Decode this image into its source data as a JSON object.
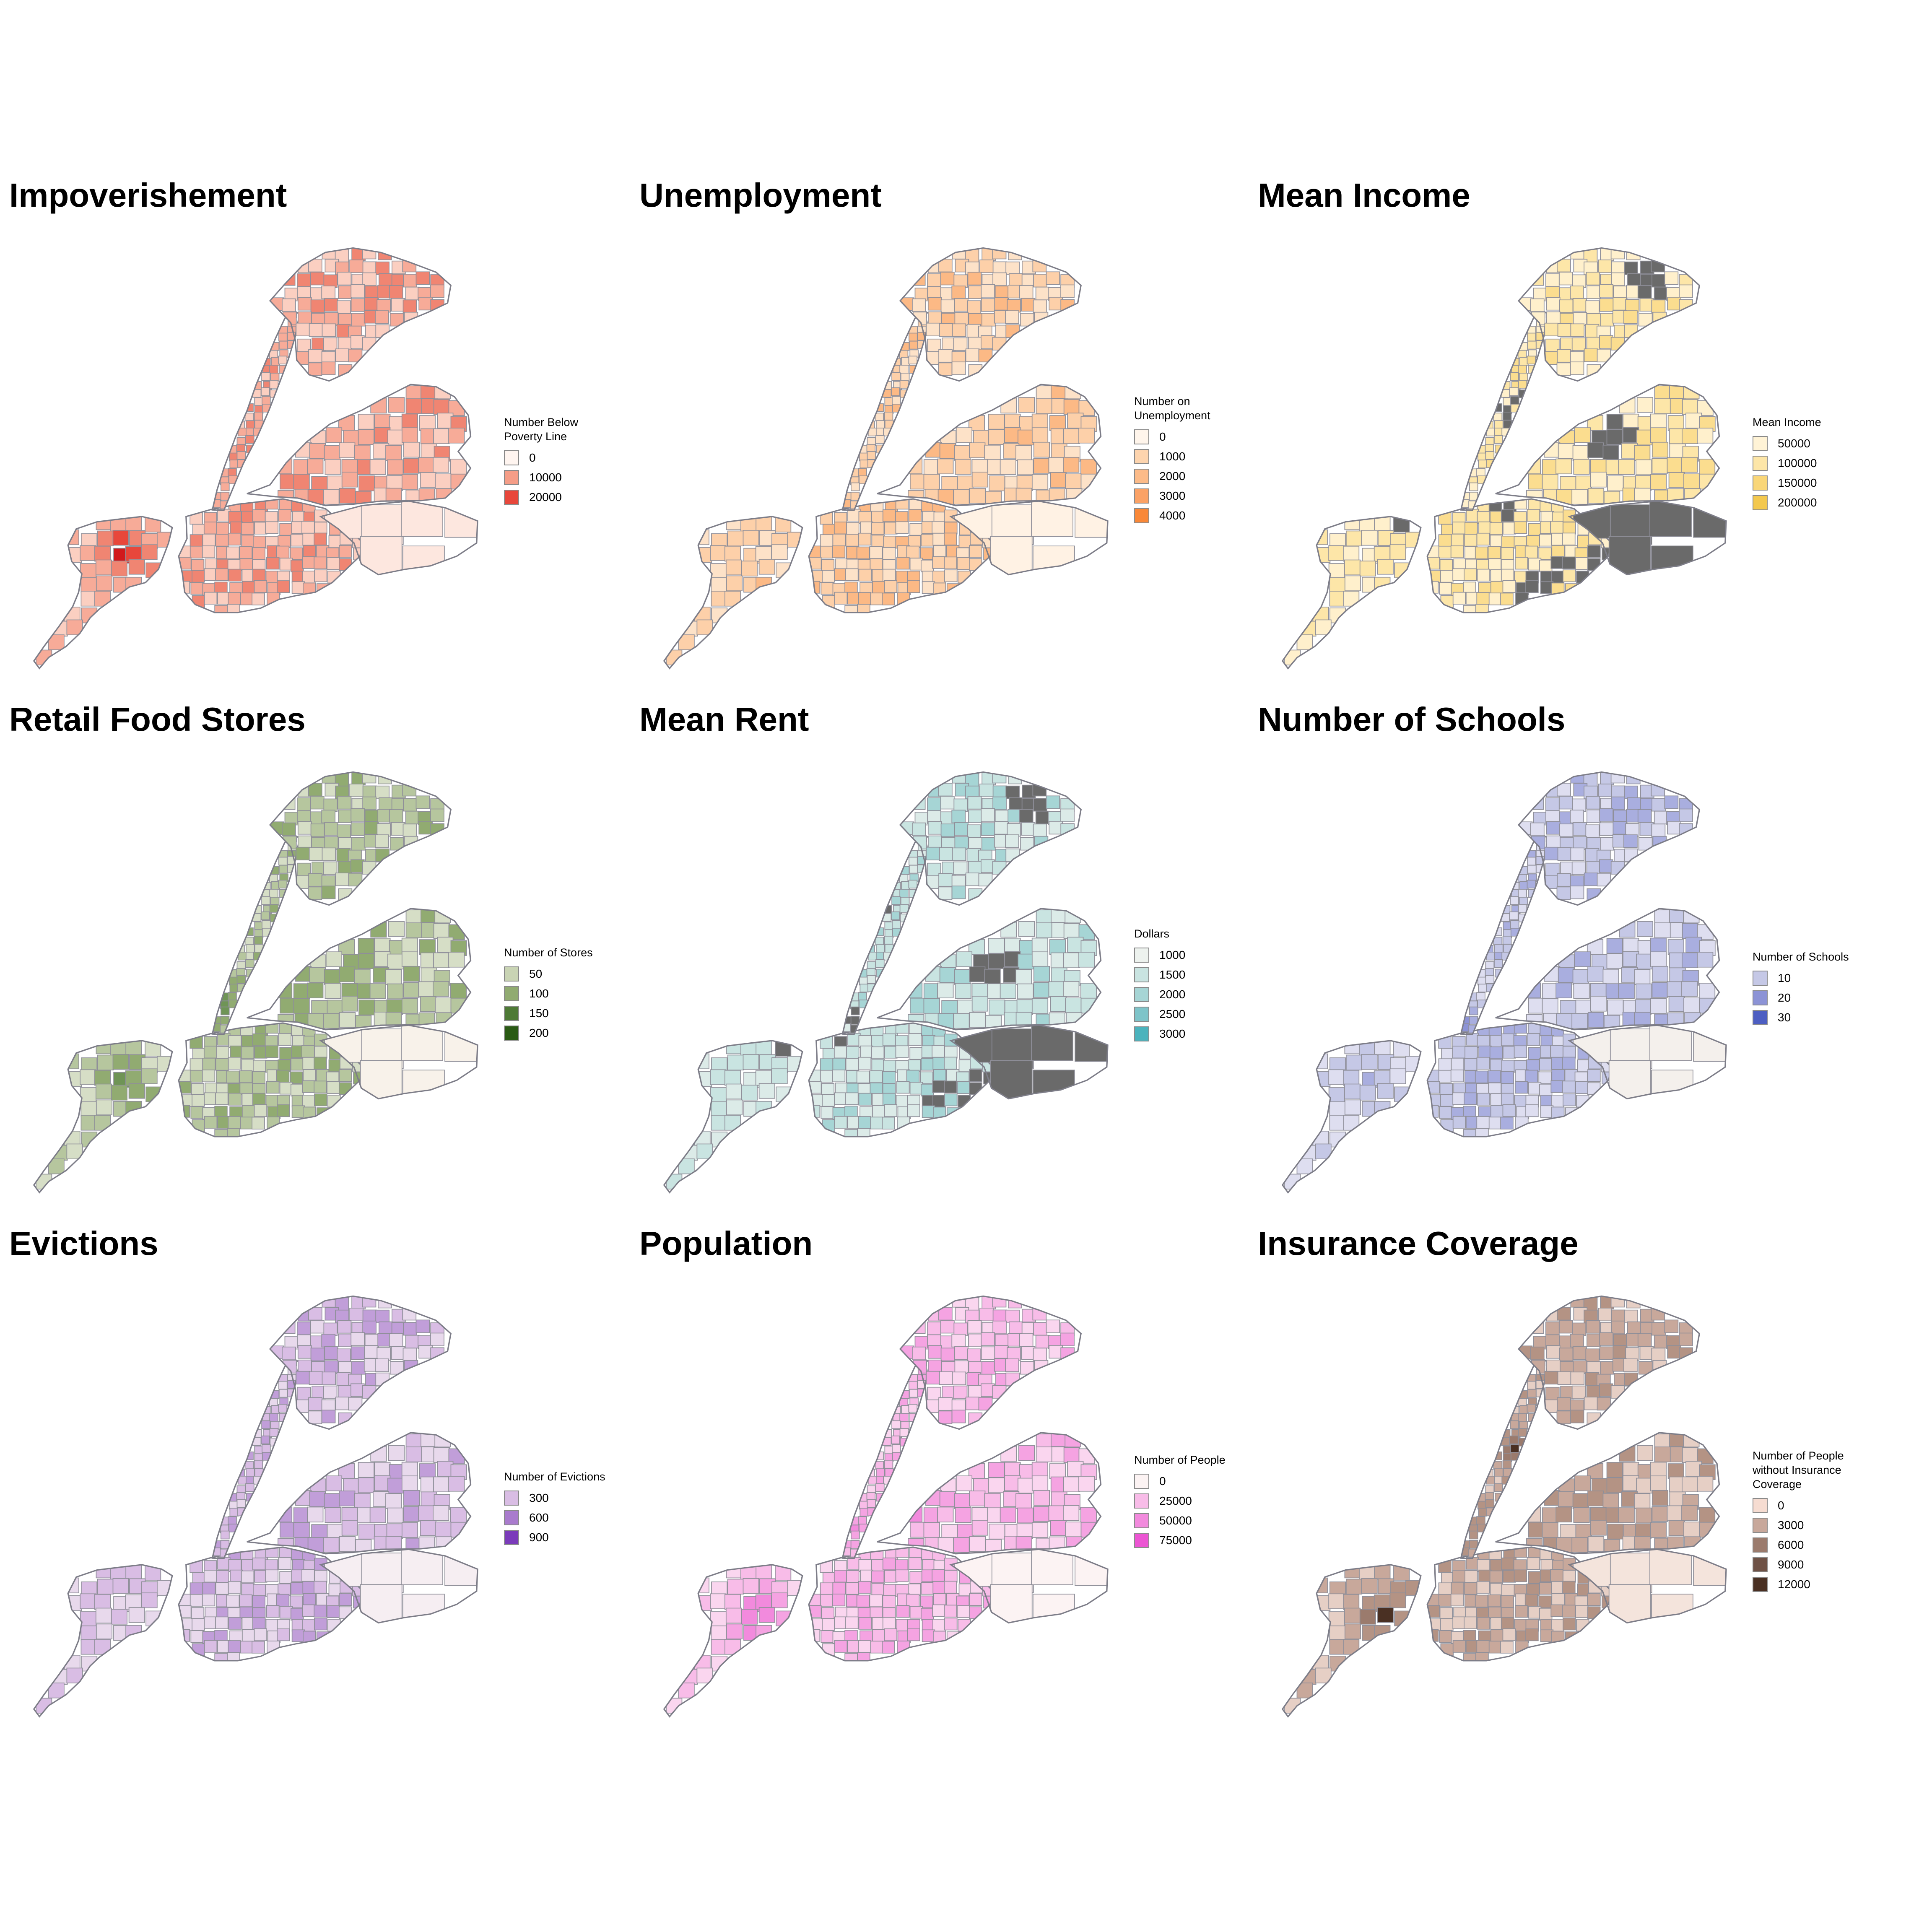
{
  "figure": {
    "panels": [
      {
        "id": "impoverishement",
        "title": "Impoverishement",
        "legend": {
          "title": "Number Below\nPoverty Line",
          "entries": [
            {
              "label": "0",
              "color": "#fff5f0"
            },
            {
              "label": "10000",
              "color": "#f59d87"
            },
            {
              "label": "20000",
              "color": "#e8473b"
            }
          ]
        },
        "palette": [
          "#fde7df",
          "#fbcfc1",
          "#f7ab98",
          "#f08572",
          "#e8473b",
          "#d11a1d"
        ],
        "hot": [
          [
            0.3,
            0.22,
            5
          ],
          [
            0.28,
            0.16,
            4
          ],
          [
            0.35,
            0.25,
            4
          ],
          [
            0.42,
            0.3,
            4
          ],
          [
            0.2,
            0.72,
            5
          ],
          [
            0.26,
            0.74,
            4
          ],
          [
            0.4,
            0.5,
            4
          ],
          [
            0.48,
            0.58,
            4
          ],
          [
            0.32,
            0.6,
            3
          ],
          [
            0.24,
            0.3,
            3
          ]
        ],
        "missing": []
      },
      {
        "id": "unemployment",
        "title": "Unemployment",
        "legend": {
          "title": "Number on\nUnemployment",
          "entries": [
            {
              "label": "0",
              "color": "#fff5eb"
            },
            {
              "label": "1000",
              "color": "#fdd4ae"
            },
            {
              "label": "2000",
              "color": "#fcbb89"
            },
            {
              "label": "3000",
              "color": "#fba266"
            },
            {
              "label": "4000",
              "color": "#f98838"
            }
          ]
        },
        "palette": [
          "#fff2e4",
          "#fde2c8",
          "#fdd0a9",
          "#fcb985",
          "#fba266",
          "#f98838"
        ],
        "hot": [
          [
            0.26,
            0.14,
            5
          ],
          [
            0.3,
            0.22,
            4
          ],
          [
            0.22,
            0.32,
            3
          ],
          [
            0.38,
            0.52,
            4
          ],
          [
            0.5,
            0.55,
            4
          ],
          [
            0.62,
            0.58,
            3
          ],
          [
            0.3,
            0.66,
            3
          ],
          [
            0.22,
            0.8,
            3
          ]
        ],
        "missing": []
      },
      {
        "id": "mean-income",
        "title": "Mean Income",
        "legend": {
          "title": "Mean Income",
          "entries": [
            {
              "label": "50000",
              "color": "#fff3d6"
            },
            {
              "label": "100000",
              "color": "#fde6a8"
            },
            {
              "label": "150000",
              "color": "#f9d678"
            },
            {
              "label": "200000",
              "color": "#f3c84e"
            }
          ]
        },
        "palette": [
          "#fff6df",
          "#fff0cc",
          "#fde6a8",
          "#fbdd8f",
          "#f9d678",
          "#f3c84e"
        ],
        "hot": [
          [
            0.08,
            0.4,
            5
          ],
          [
            0.12,
            0.48,
            4
          ],
          [
            0.1,
            0.34,
            4
          ],
          [
            0.14,
            0.56,
            3
          ],
          [
            0.06,
            0.84,
            3
          ]
        ],
        "missing": [
          [
            0.62,
            0.78
          ],
          [
            0.7,
            0.74
          ],
          [
            0.56,
            0.82
          ],
          [
            0.44,
            0.32
          ],
          [
            0.52,
            0.4
          ],
          [
            0.8,
            0.1
          ],
          [
            0.72,
            0.46
          ],
          [
            0.3,
            0.66
          ],
          [
            0.48,
            0.6
          ]
        ]
      },
      {
        "id": "retail-food-stores",
        "title": "Retail Food Stores",
        "legend": {
          "title": "Number of Stores",
          "entries": [
            {
              "label": "50",
              "color": "#c9d4b4"
            },
            {
              "label": "100",
              "color": "#91ab71"
            },
            {
              "label": "150",
              "color": "#4e7a36"
            },
            {
              "label": "200",
              "color": "#2a5a14"
            }
          ]
        },
        "palette": [
          "#f8f2ea",
          "#d6dec6",
          "#b6c69e",
          "#91ab71",
          "#6f9456",
          "#2a5a14"
        ],
        "hot": [
          [
            0.34,
            0.52,
            5
          ],
          [
            0.4,
            0.56,
            5
          ],
          [
            0.2,
            0.72,
            4
          ],
          [
            0.26,
            0.78,
            4
          ],
          [
            0.58,
            0.54,
            4
          ],
          [
            0.28,
            0.24,
            3
          ],
          [
            0.24,
            0.14,
            3
          ]
        ],
        "missing": []
      },
      {
        "id": "mean-rent",
        "title": "Mean Rent",
        "legend": {
          "title": "Dollars",
          "entries": [
            {
              "label": "1000",
              "color": "#edf2ee"
            },
            {
              "label": "1500",
              "color": "#c9e4e1"
            },
            {
              "label": "2000",
              "color": "#a6d5d5"
            },
            {
              "label": "2500",
              "color": "#7ec4c9"
            },
            {
              "label": "3000",
              "color": "#4bb3bd"
            }
          ]
        },
        "palette": [
          "#edf2ee",
          "#dcebe8",
          "#c9e4e1",
          "#a6d5d5",
          "#7ec4c9",
          "#4bb3bd"
        ],
        "hot": [
          [
            0.1,
            0.44,
            5
          ],
          [
            0.12,
            0.52,
            4
          ],
          [
            0.08,
            0.38,
            4
          ],
          [
            0.14,
            0.6,
            3
          ]
        ],
        "missing": [
          [
            0.62,
            0.78
          ],
          [
            0.7,
            0.74
          ],
          [
            0.8,
            0.1
          ],
          [
            0.46,
            0.32
          ],
          [
            0.54,
            0.42
          ],
          [
            0.72,
            0.48
          ],
          [
            0.28,
            0.64
          ],
          [
            0.4,
            0.6
          ],
          [
            0.3,
            0.1
          ]
        ]
      },
      {
        "id": "number-of-schools",
        "title": "Number of Schools",
        "legend": {
          "title": "Number of Schools",
          "entries": [
            {
              "label": "10",
              "color": "#c5c8e6"
            },
            {
              "label": "20",
              "color": "#8c93d6"
            },
            {
              "label": "30",
              "color": "#4d5ec2"
            }
          ]
        },
        "palette": [
          "#f4f0ec",
          "#dedef0",
          "#c5c8e6",
          "#a9aedf",
          "#8c93d6",
          "#4d5ec2"
        ],
        "hot": [
          [
            0.36,
            0.56,
            5
          ],
          [
            0.4,
            0.6,
            4
          ],
          [
            0.3,
            0.2,
            4
          ],
          [
            0.24,
            0.3,
            4
          ],
          [
            0.46,
            0.66,
            3
          ],
          [
            0.2,
            0.72,
            3
          ]
        ],
        "missing": []
      },
      {
        "id": "evictions",
        "title": "Evictions",
        "legend": {
          "title": "Number of Evictions",
          "entries": [
            {
              "label": "300",
              "color": "#d9bde4"
            },
            {
              "label": "600",
              "color": "#a97bcd"
            },
            {
              "label": "900",
              "color": "#7b3bba"
            }
          ]
        },
        "palette": [
          "#f6eef2",
          "#e8d9ec",
          "#d9bde4",
          "#c19ed9",
          "#a97bcd",
          "#6a1fb0"
        ],
        "hot": [
          [
            0.3,
            0.16,
            5
          ],
          [
            0.34,
            0.22,
            5
          ],
          [
            0.26,
            0.24,
            4
          ],
          [
            0.38,
            0.56,
            4
          ],
          [
            0.3,
            0.6,
            4
          ],
          [
            0.44,
            0.62,
            3
          ],
          [
            0.6,
            0.6,
            3
          ],
          [
            0.6,
            0.82,
            3
          ]
        ],
        "missing": []
      },
      {
        "id": "population",
        "title": "Population",
        "legend": {
          "title": "Number of People",
          "entries": [
            {
              "label": "0",
              "color": "#fcf3f3"
            },
            {
              "label": "25000",
              "color": "#f8bce8"
            },
            {
              "label": "50000",
              "color": "#f28add"
            },
            {
              "label": "75000",
              "color": "#ec55d3"
            }
          ]
        },
        "palette": [
          "#fcf3f3",
          "#fad6ef",
          "#f8bce8",
          "#f5a3e2",
          "#f28add",
          "#ec55d3"
        ],
        "hot": [
          [
            0.22,
            0.74,
            5
          ],
          [
            0.2,
            0.8,
            4
          ],
          [
            0.3,
            0.24,
            4
          ],
          [
            0.26,
            0.32,
            4
          ],
          [
            0.42,
            0.56,
            4
          ],
          [
            0.56,
            0.52,
            4
          ],
          [
            0.52,
            0.64,
            3
          ]
        ],
        "missing": []
      },
      {
        "id": "insurance-coverage",
        "title": "Insurance Coverage",
        "legend": {
          "title": "Number of People\n without Insurance Coverage",
          "entries": [
            {
              "label": "0",
              "color": "#f6dcd1"
            },
            {
              "label": "3000",
              "color": "#c8a89b"
            },
            {
              "label": "6000",
              "color": "#9b7b6d"
            },
            {
              "label": "9000",
              "color": "#6f5246"
            },
            {
              "label": "12000",
              "color": "#4a3023"
            }
          ]
        },
        "palette": [
          "#f4e4dc",
          "#e6cfc5",
          "#c8a89b",
          "#b49384",
          "#9b7b6d",
          "#4a3023"
        ],
        "hot": [
          [
            0.52,
            0.38,
            5
          ],
          [
            0.56,
            0.42,
            4
          ],
          [
            0.4,
            0.56,
            4
          ],
          [
            0.22,
            0.76,
            5
          ],
          [
            0.28,
            0.72,
            4
          ],
          [
            0.26,
            0.2,
            4
          ],
          [
            0.36,
            0.26,
            3
          ],
          [
            0.64,
            0.5,
            3
          ]
        ],
        "missing": []
      }
    ]
  }
}
